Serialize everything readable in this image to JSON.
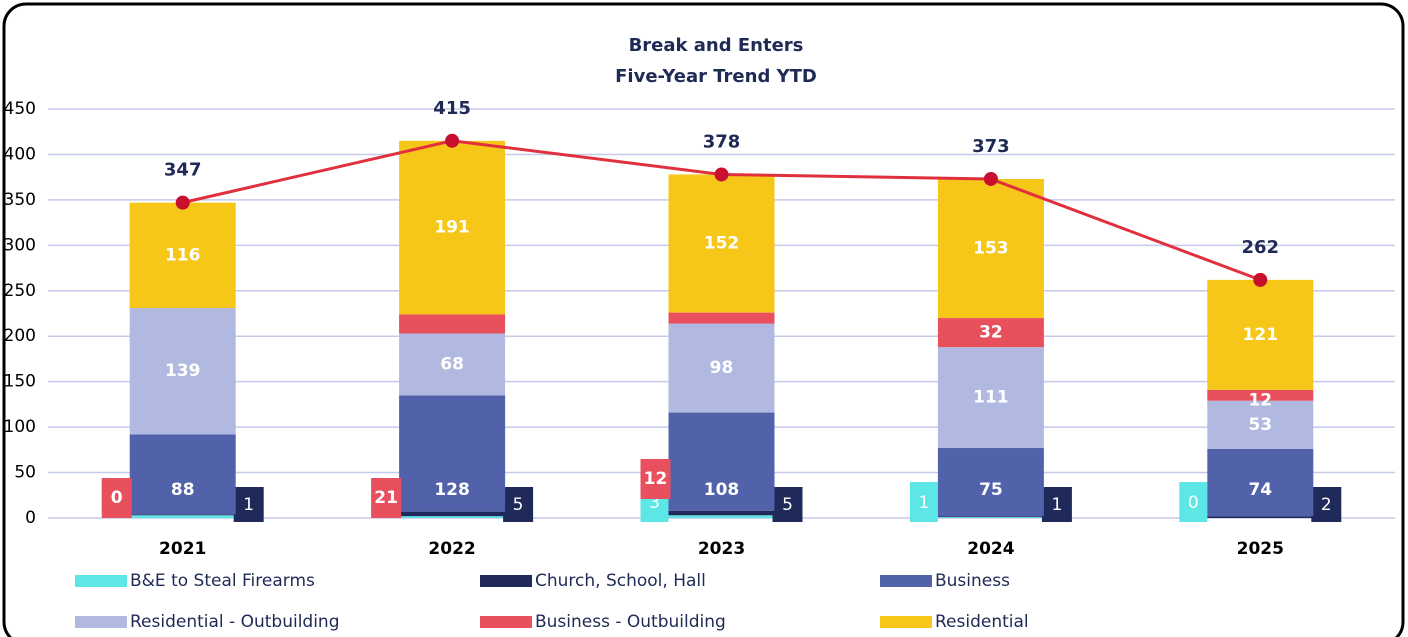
{
  "chart_data": {
    "type": "bar",
    "stacked": true,
    "title": "Break and Enters",
    "subtitle": "Five-Year Trend YTD",
    "categories": [
      "2021",
      "2022",
      "2023",
      "2024",
      "2025"
    ],
    "series": [
      {
        "name": "B&E to Steal Firearms",
        "color": "#5ce6e6",
        "values": [
          3,
          2,
          3,
          1,
          0
        ],
        "value_labels": [
          null,
          null,
          "3",
          "1",
          "0"
        ]
      },
      {
        "name": "Church, School, Hall",
        "color": "#1f2a5a",
        "values": [
          1,
          5,
          5,
          1,
          2
        ]
      },
      {
        "name": "Business",
        "color": "#5262aa",
        "values": [
          88,
          128,
          108,
          75,
          74
        ]
      },
      {
        "name": "Residential - Outbuilding",
        "color": "#b2b9e1",
        "values": [
          139,
          68,
          98,
          111,
          53
        ]
      },
      {
        "name": "Business - Outbuilding",
        "color": "#e8505e",
        "values": [
          0,
          21,
          12,
          32,
          12
        ]
      },
      {
        "name": "Residential",
        "color": "#f6c619",
        "values": [
          116,
          191,
          152,
          153,
          121
        ]
      }
    ],
    "totals": {
      "type": "line",
      "color": "#e0303e",
      "values": [
        347,
        415,
        378,
        373,
        262
      ]
    },
    "ylim": [
      0,
      450
    ],
    "yticks": [
      0,
      50,
      100,
      150,
      200,
      250,
      300,
      350,
      400,
      450
    ],
    "grid": true
  }
}
